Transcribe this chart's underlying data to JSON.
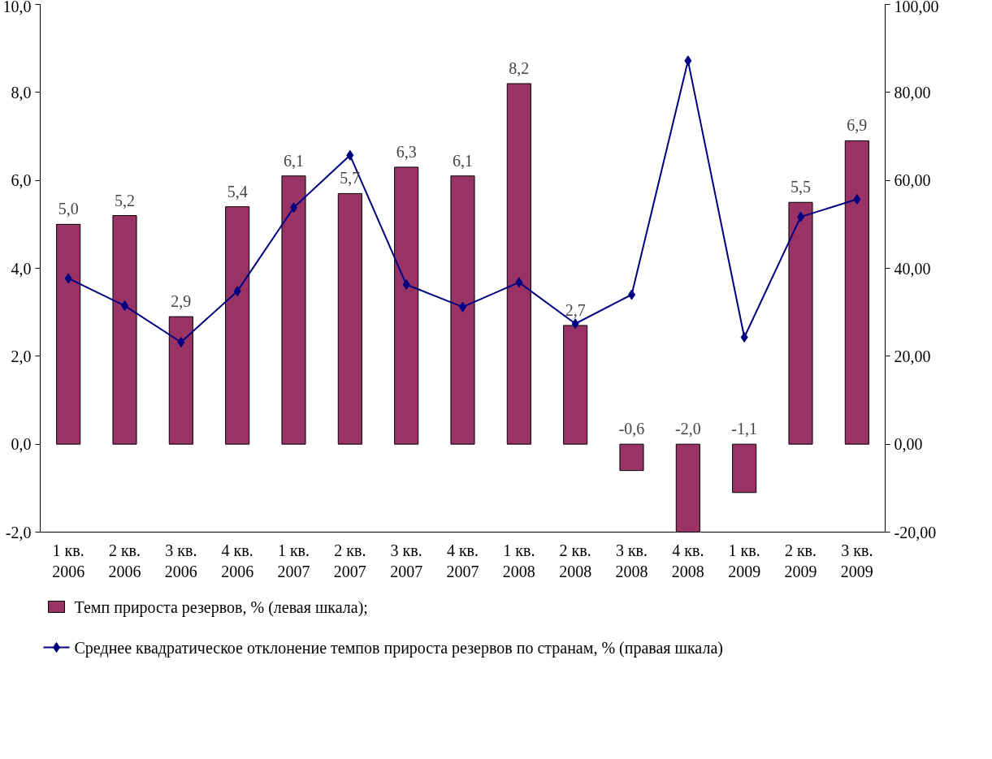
{
  "chart_data": {
    "type": "bar",
    "categories": [
      "1 кв.\n2006",
      "2 кв.\n2006",
      "3 кв.\n2006",
      "4 кв.\n2006",
      "1 кв.\n2007",
      "2 кв.\n2007",
      "3 кв.\n2007",
      "4 кв.\n2007",
      "1 кв.\n2008",
      "2 кв.\n2008",
      "3 кв.\n2008",
      "4 кв.\n2008",
      "1 кв.\n2009",
      "2 кв.\n2009",
      "3 кв.\n2009"
    ],
    "series": [
      {
        "name": "Темп прироста резервов, % (левая шкала);",
        "color": "#993366",
        "values": [
          5.0,
          5.2,
          2.9,
          5.4,
          6.1,
          5.7,
          6.3,
          6.1,
          8.2,
          2.7,
          -0.6,
          -2.0,
          -1.1,
          5.5,
          6.9
        ],
        "value_labels": [
          "5,0",
          "5,2",
          "2,9",
          "5,4",
          "6,1",
          "5,7",
          "6,3",
          "6,1",
          "8,2",
          "2,7",
          "-0,6",
          "-2,0",
          "-1,1",
          "5,5",
          "6,9"
        ]
      },
      {
        "name": "Среднее квадратическое отклонение темпов прироста резервов по странам, % (правая шкала)",
        "type": "line",
        "axis": "y2",
        "color": "#000080",
        "marker": "diamond",
        "values": [
          37.7,
          31.5,
          23.2,
          34.8,
          53.8,
          65.7,
          36.3,
          31.2,
          36.8,
          27.4,
          34.0,
          87.2,
          24.3,
          51.7,
          55.7
        ]
      }
    ],
    "ylim": [
      -2,
      10
    ],
    "yticks": [
      {
        "value": -2,
        "label": "-2,0"
      },
      {
        "value": 0,
        "label": "0,0"
      },
      {
        "value": 2,
        "label": "2,0"
      },
      {
        "value": 4,
        "label": "4,0"
      },
      {
        "value": 6,
        "label": "6,0"
      },
      {
        "value": 8,
        "label": "8,0"
      },
      {
        "value": 10,
        "label": "10,0"
      }
    ],
    "y2lim": [
      -20,
      100
    ],
    "y2ticks": [
      {
        "value": -20,
        "label": "-20,00"
      },
      {
        "value": 0,
        "label": "0,00"
      },
      {
        "value": 20,
        "label": "20,00"
      },
      {
        "value": 40,
        "label": "40,00"
      },
      {
        "value": 60,
        "label": "60,00"
      },
      {
        "value": 80,
        "label": "80,00"
      },
      {
        "value": 100,
        "label": "100,00"
      }
    ],
    "legend": "bottom",
    "grid": false
  }
}
